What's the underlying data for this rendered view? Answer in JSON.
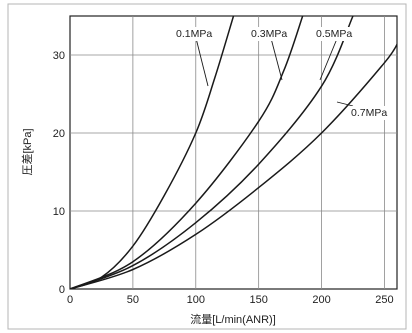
{
  "chart_data": {
    "type": "line",
    "xlabel": "流量[L/min(ANR)]",
    "ylabel": "圧差[kPa]",
    "xlim": [
      0,
      260
    ],
    "ylim": [
      0,
      35
    ],
    "xticks": [
      0,
      50,
      100,
      150,
      200,
      250
    ],
    "yticks": [
      0,
      10,
      20,
      30
    ],
    "grid": true,
    "series": [
      {
        "name": "0.1MPa",
        "x": [
          0,
          25,
          50,
          75,
          100,
          115,
          130
        ],
        "y": [
          0,
          1.5,
          5.5,
          12,
          20,
          27,
          35
        ]
      },
      {
        "name": "0.3MPa",
        "x": [
          0,
          50,
          100,
          150,
          170,
          185
        ],
        "y": [
          0,
          3.5,
          11,
          21.5,
          28,
          35
        ]
      },
      {
        "name": "0.5MPa",
        "x": [
          0,
          50,
          100,
          150,
          200,
          225
        ],
        "y": [
          0,
          3,
          8.5,
          16,
          26,
          35
        ]
      },
      {
        "name": "0.7MPa",
        "x": [
          0,
          50,
          100,
          150,
          200,
          250,
          262
        ],
        "y": [
          0,
          2.5,
          7,
          13,
          20,
          29,
          32
        ]
      }
    ]
  }
}
